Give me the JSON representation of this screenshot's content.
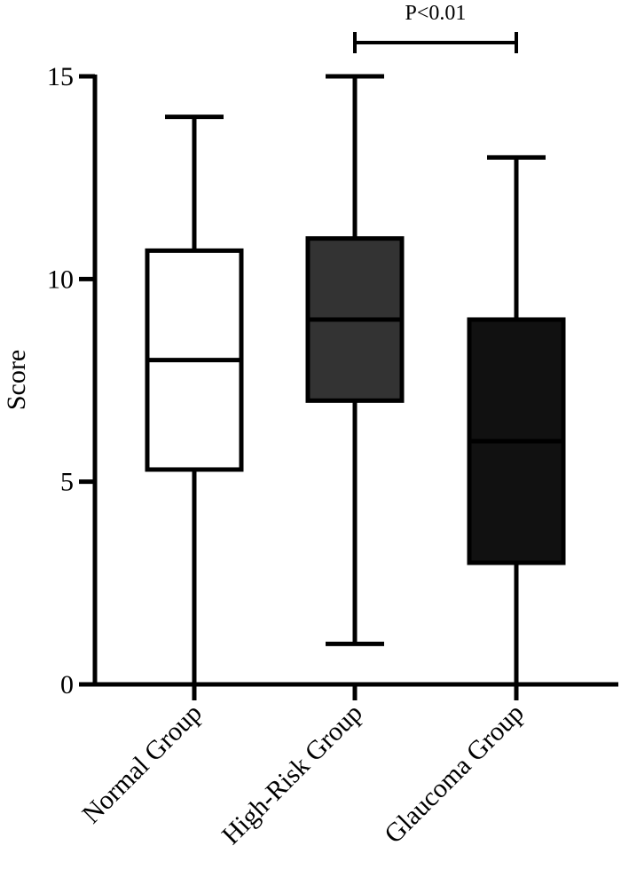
{
  "chart_data": {
    "type": "boxplot",
    "title": "",
    "xlabel": "",
    "ylabel": "Score",
    "ylim": [
      0,
      15
    ],
    "yticks": [
      0,
      5,
      10,
      15
    ],
    "grid": false,
    "legend": "none",
    "categories": [
      "Normal Group",
      "High-Risk Group",
      "Glaucoma Group"
    ],
    "boxes": [
      {
        "category": "Normal Group",
        "min": 0,
        "q1": 5.3,
        "median": 8,
        "q3": 10.7,
        "max": 14,
        "fill": "#ffffff",
        "median_color": "#000000"
      },
      {
        "category": "High-Risk Group",
        "min": 1,
        "q1": 7,
        "median": 9,
        "q3": 11,
        "max": 15,
        "fill": "#333333",
        "median_color": "#000000"
      },
      {
        "category": "Glaucoma Group",
        "min": 0,
        "q1": 3,
        "median": 6,
        "q3": 9,
        "max": 13,
        "fill": "#111111",
        "median_color": "#000000"
      }
    ],
    "annotations": [
      {
        "text": "P<0.01",
        "from": "High-Risk Group",
        "to": "Glaucoma Group"
      }
    ]
  }
}
